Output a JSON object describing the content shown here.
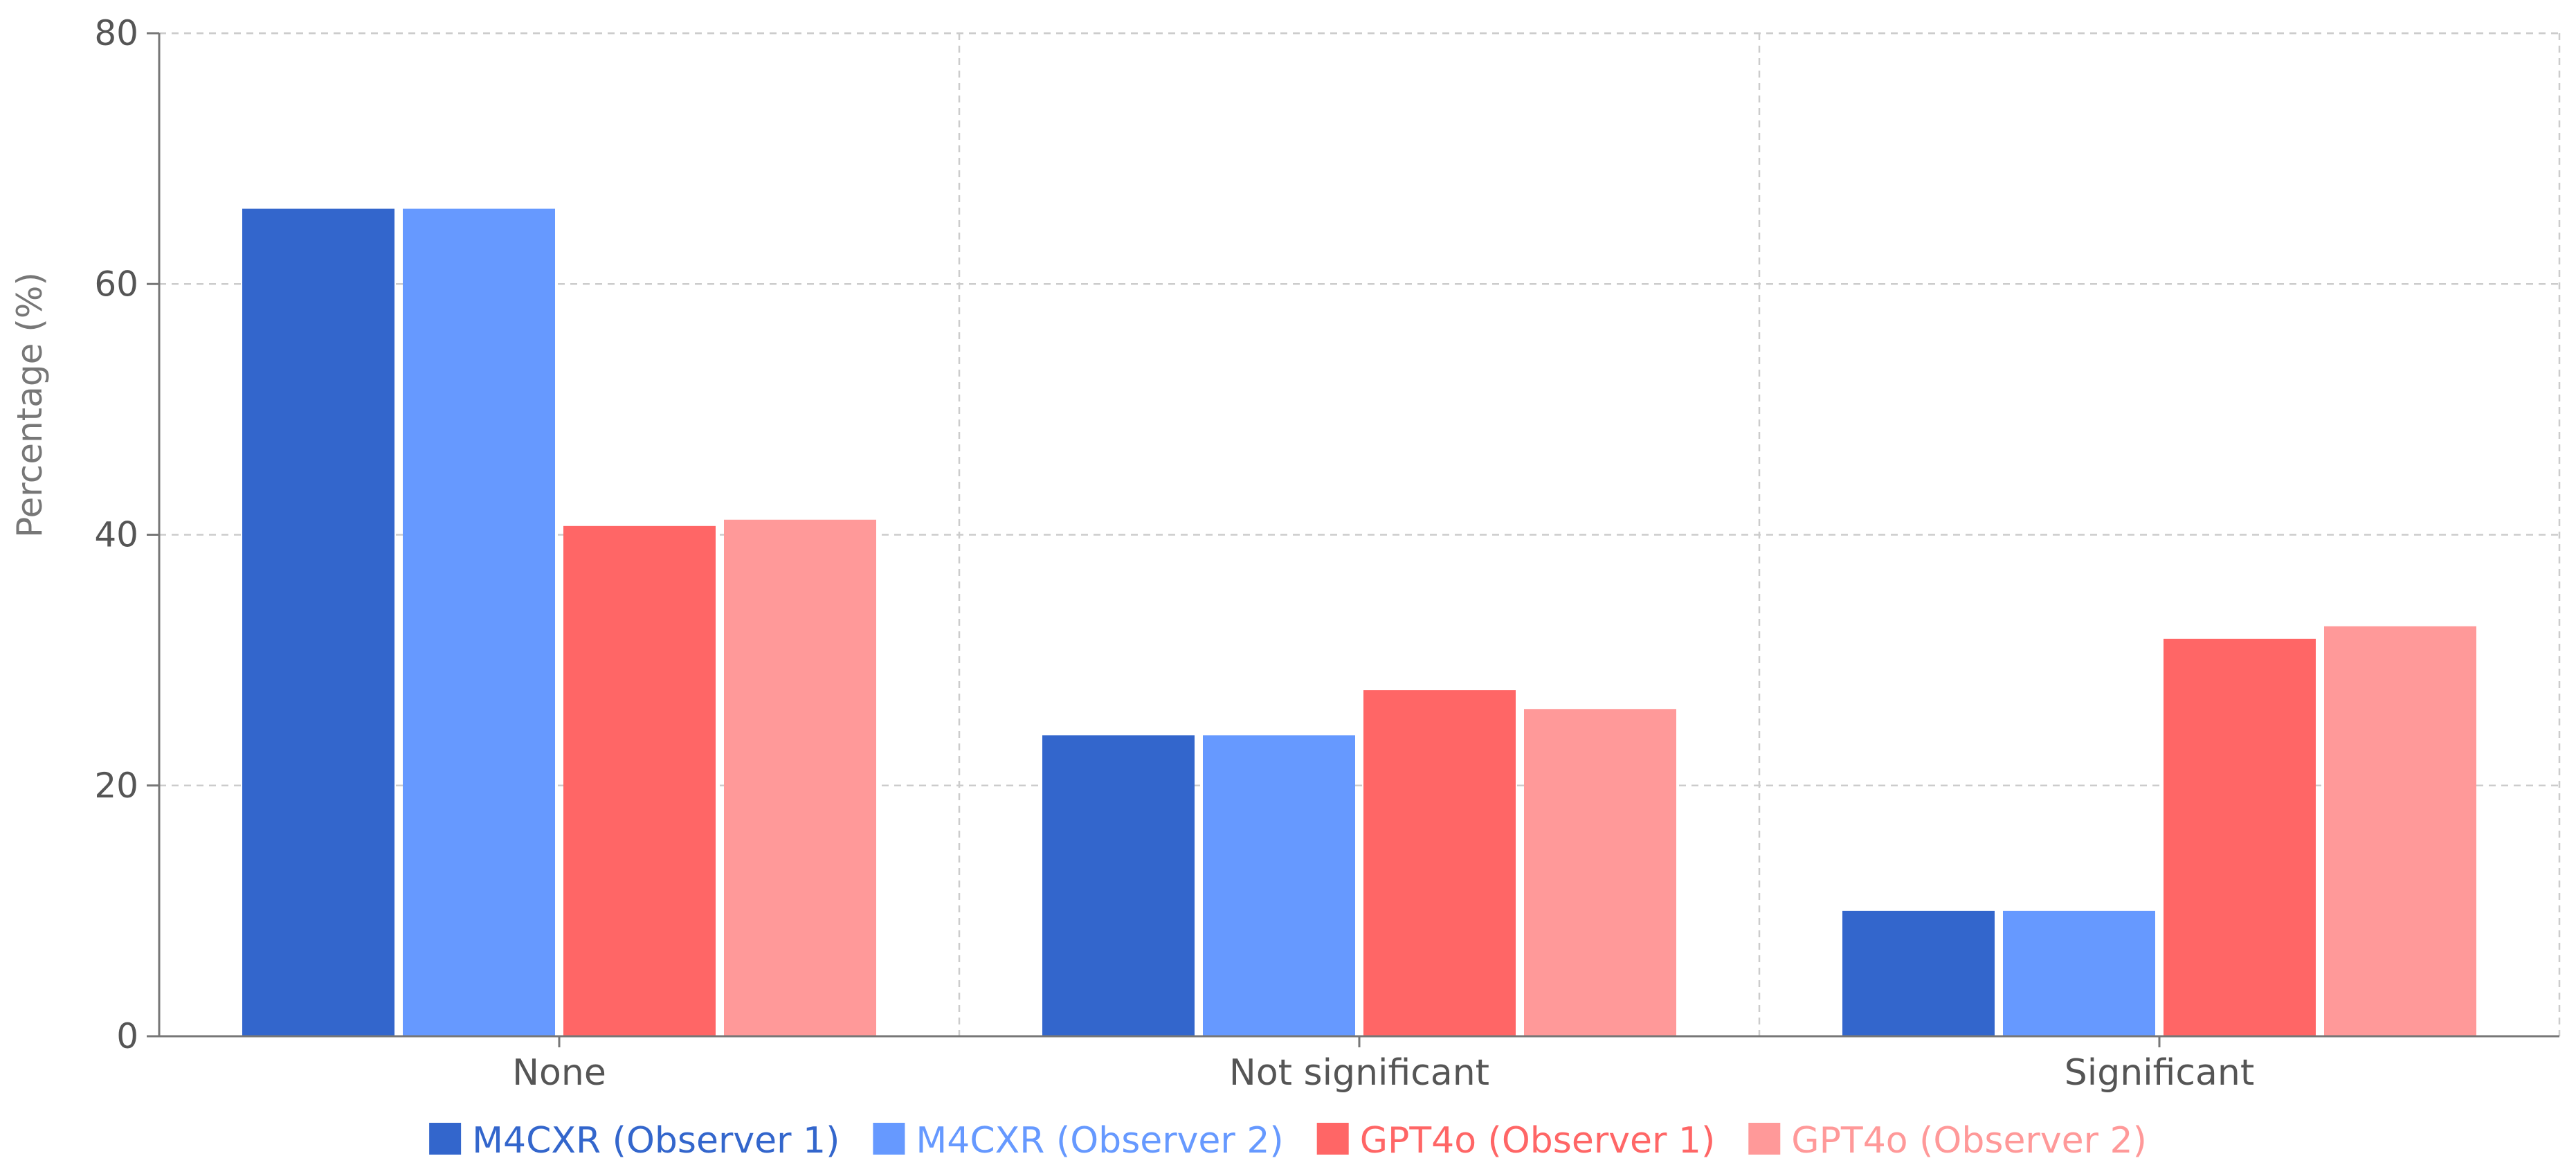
{
  "chart_data": {
    "type": "bar",
    "title": "",
    "xlabel": "",
    "ylabel": "Percentage (%)",
    "ylim": [
      0,
      80
    ],
    "yticks": [
      0,
      20,
      40,
      60,
      80
    ],
    "grid": true,
    "legend_position": "bottom",
    "categories": [
      "None",
      "Not significant",
      "Significant"
    ],
    "series": [
      {
        "name": "M4CXR (Observer 1)",
        "color": "#3366cc",
        "values": [
          66,
          24,
          10
        ]
      },
      {
        "name": "M4CXR (Observer 2)",
        "color": "#6699ff",
        "values": [
          66,
          24,
          10
        ]
      },
      {
        "name": "GPT4o (Observer 1)",
        "color": "#ff6666",
        "values": [
          40.7,
          27.6,
          31.7
        ]
      },
      {
        "name": "GPT4o (Observer 2)",
        "color": "#ff9999",
        "values": [
          41.2,
          26.1,
          32.7
        ]
      }
    ]
  }
}
